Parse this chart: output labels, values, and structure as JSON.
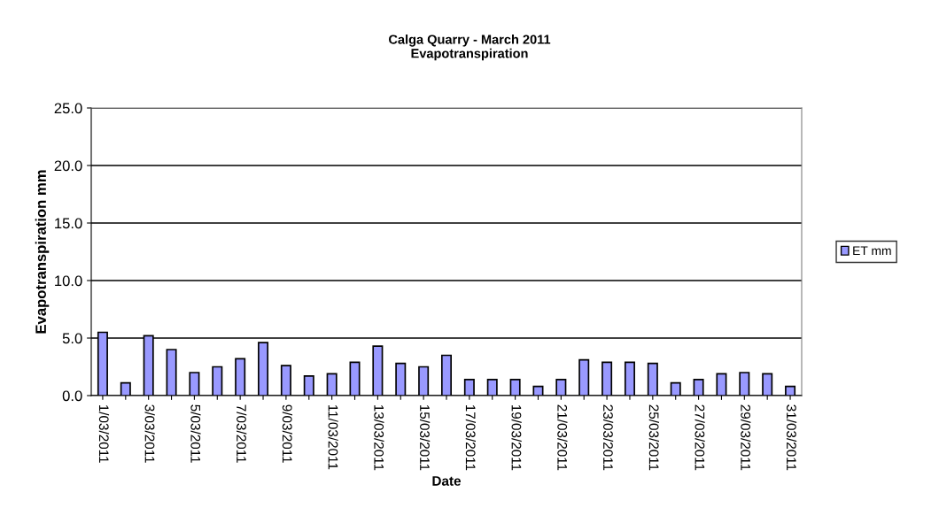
{
  "chart_data": {
    "type": "bar",
    "title": "Calga Quarry - March 2011\nEvapotranspiration",
    "xlabel": "Date",
    "ylabel": "Evapotranspiration mm",
    "categories": [
      "1/03/2011",
      null,
      "3/03/2011",
      null,
      "5/03/2011",
      null,
      "7/03/2011",
      null,
      "9/03/2011",
      null,
      "11/03/2011",
      null,
      "13/03/2011",
      null,
      "15/03/2011",
      null,
      "17/03/2011",
      null,
      "19/03/2011",
      null,
      "21/03/2011",
      null,
      "23/03/2011",
      null,
      "25/03/2011",
      null,
      "27/03/2011",
      null,
      "29/03/2011",
      null,
      "31/03/2011"
    ],
    "series": [
      {
        "name": "ET mm",
        "color": "#9999ff",
        "values": [
          5.5,
          1.1,
          5.2,
          4.0,
          2.0,
          2.5,
          3.2,
          4.6,
          2.6,
          1.7,
          1.9,
          2.9,
          4.3,
          2.8,
          2.5,
          3.5,
          1.4,
          1.4,
          1.4,
          0.8,
          1.4,
          3.1,
          2.9,
          2.9,
          2.8,
          1.1,
          1.4,
          1.9,
          2.0,
          1.9,
          0.8
        ]
      }
    ],
    "ylim": [
      0,
      25
    ],
    "yticks": [
      {
        "value": 0,
        "label": "0.0"
      },
      {
        "value": 5,
        "label": "5.0"
      },
      {
        "value": 10,
        "label": "10.0"
      },
      {
        "value": 15,
        "label": "15.0"
      },
      {
        "value": 20,
        "label": "20.0"
      },
      {
        "value": 25,
        "label": "25.0"
      }
    ],
    "grid": "y",
    "legend": "right"
  }
}
